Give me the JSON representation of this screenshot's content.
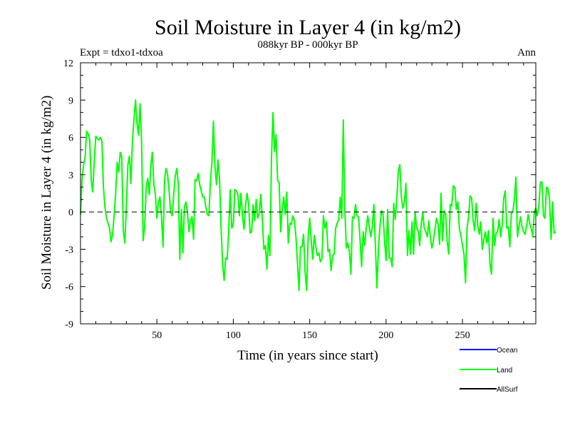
{
  "chart_data": {
    "type": "line",
    "title": "Soil Moisture in Layer 4 (in kg/m2)",
    "subtitle": "088kyr BP - 000kyr BP",
    "expt_label": "Expt = tdxo1-tdxoa",
    "period_label": "Ann",
    "xlabel": "Time (in years since start)",
    "ylabel": "Soil Moisture in Layer 4 (in kg/m2)",
    "xlim": [
      0,
      298
    ],
    "ylim": [
      -9,
      12
    ],
    "xticks": [
      50,
      100,
      150,
      200,
      250
    ],
    "yticks": [
      -9,
      -6,
      -3,
      0,
      3,
      6,
      9,
      12
    ],
    "zero_line": "dashed",
    "grid": false,
    "legend": "bottom-right",
    "colors": {
      "Ocean": "#0000ff",
      "Land": "#00ff00",
      "AllSurf": "#000000"
    },
    "series": [
      {
        "name": "Ocean",
        "values": []
      },
      {
        "name": "Land",
        "x_start": 0,
        "x_step": 1,
        "values": [
          -0.2,
          2.6,
          3.8,
          4.4,
          6.5,
          6.3,
          5.8,
          2.6,
          1.6,
          4.1,
          6.1,
          5.9,
          5.8,
          6.0,
          5.7,
          2.0,
          0.4,
          -0.5,
          -0.9,
          -1.3,
          -2.4,
          -1.8,
          -0.3,
          1.5,
          4.0,
          3.2,
          4.8,
          4.4,
          -1.5,
          -2.5,
          0.5,
          3.8,
          4.5,
          2.3,
          5.7,
          7.5,
          9.0,
          7.1,
          6.2,
          8.7,
          5.5,
          -2.3,
          -1.2,
          2.0,
          2.7,
          1.4,
          3.7,
          4.8,
          2.2,
          1.4,
          -0.5,
          0.8,
          1.2,
          -0.4,
          -2.8,
          2.6,
          3.5,
          3.0,
          1.7,
          0.0,
          -0.3,
          1.4,
          2.9,
          3.5,
          2.3,
          -3.8,
          0.2,
          -3.3,
          0.4,
          0.8,
          0.0,
          -1.6,
          -0.7,
          -0.4,
          -2.2,
          2.6,
          2.5,
          3.1,
          2.2,
          1.7,
          1.2,
          1.2,
          0.4,
          -0.2,
          -0.3,
          2.4,
          4.0,
          7.3,
          3.7,
          2.2,
          4.2,
          2.6,
          -1.3,
          -4.2,
          -5.5,
          -3.7,
          -3.8,
          -1.5,
          1.8,
          -1.3,
          -1.0,
          1.8,
          1.7,
          1.4,
          -0.3,
          1.5,
          -0.3,
          -1.4,
          0.5,
          1.5,
          0.7,
          -1.7,
          -1.6,
          0.6,
          -0.7,
          1.0,
          -0.5,
          -0.1,
          1.4,
          -0.6,
          -3.0,
          -2.7,
          -4.6,
          -1.9,
          -3.5,
          4.4,
          8.0,
          4.9,
          6.2,
          2.5,
          2.4,
          -1.6,
          0.2,
          1.2,
          -0.2,
          1.6,
          -2.5,
          -0.9,
          -1.0,
          -0.3,
          -0.7,
          -2.0,
          -4.1,
          -6.3,
          -2.8,
          -2.8,
          -1.8,
          -4.8,
          -6.3,
          -2.0,
          -0.5,
          -2.3,
          -3.8,
          -1.9,
          -2.8,
          -3.5,
          -3.3,
          -4.0,
          -3.8,
          -0.3,
          -1.3,
          -0.8,
          -3.2,
          -3.0,
          -4.7,
          -3.5,
          -3.4,
          -1.3,
          -0.9,
          -0.6,
          1.2,
          -0.5,
          7.4,
          0.2,
          -2.9,
          -2.5,
          -3.2,
          -5.0,
          -0.4,
          -0.5,
          0.6,
          -0.3,
          -0.4,
          -2.3,
          -4.4,
          -1.6,
          -2.7,
          -1.3,
          -0.3,
          -1.2,
          -2.0,
          -1.2,
          0.6,
          -2.7,
          -6.1,
          -3.0,
          -1.1,
          0.1,
          -0.2,
          -2.3,
          -3.9,
          0.2,
          -3.7,
          -3.7,
          -4.4,
          0.7,
          -0.6,
          1.0,
          3.3,
          3.8,
          1.2,
          0.3,
          0.8,
          2.3,
          -3.5,
          -1.5,
          -3.4,
          -0.8,
          -3.4,
          0.0,
          -1.3,
          -1.5,
          -2.7,
          -1.0,
          0.0,
          -1.3,
          -1.6,
          -2.0,
          -0.7,
          -2.1,
          -2.9,
          -2.3,
          -1.4,
          -0.5,
          -1.0,
          -2.6,
          1.5,
          -2.3,
          0.1,
          -0.2,
          -2.4,
          -3.4,
          0.6,
          0.5,
          2.1,
          2.0,
          0.2,
          0.8,
          -1.4,
          -1.9,
          -2.7,
          -3.4,
          -5.7,
          -1.3,
          -0.4,
          1.3,
          1.1,
          -0.7,
          -1.5,
          0.7,
          -1.1,
          -1.8,
          -0.8,
          -3.0,
          -2.2,
          -1.6,
          -2.5,
          -1.5,
          -4.2,
          -5.0,
          -0.5,
          -2.7,
          -1.7,
          -1.6,
          -0.6,
          -2.0,
          -1.0,
          1.1,
          1.7,
          -1.3,
          -1.2,
          -2.8,
          -0.1,
          0.0,
          1.1,
          2.8,
          -2.0,
          -1.1,
          -0.4,
          -1.2,
          -1.6,
          -1.8,
          -1.1,
          -0.2,
          -0.9,
          -1.3,
          -2.0,
          0.0,
          0.3,
          -0.3,
          0.5,
          2.4,
          2.4,
          -0.3,
          -0.5,
          2.0,
          1.9,
          1.0,
          -2.2,
          0.8,
          -1.7,
          -1.6
        ]
      },
      {
        "name": "AllSurf",
        "values": []
      }
    ]
  }
}
